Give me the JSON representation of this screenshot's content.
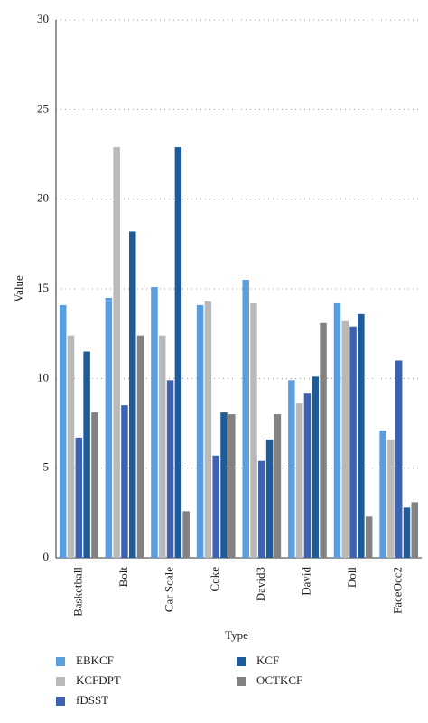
{
  "chart_data": {
    "type": "bar",
    "x_label": "Type",
    "y_label": "Value",
    "categories": [
      "Basketball",
      "Bolt",
      "Car Scale",
      "Coke",
      "David3",
      "David",
      "Doll",
      "FaceOcc2"
    ],
    "series": [
      {
        "name": "EBKCF",
        "color": "#5a9ee0",
        "values": [
          14.1,
          14.5,
          15.1,
          14.1,
          15.5,
          9.9,
          14.2,
          7.1
        ]
      },
      {
        "name": "KCFDPT",
        "color": "#b9b9b9",
        "values": [
          12.4,
          22.9,
          12.4,
          14.3,
          14.2,
          8.6,
          13.2,
          6.6
        ]
      },
      {
        "name": "fDSST",
        "color": "#3d62b3",
        "values": [
          6.7,
          8.5,
          9.9,
          5.7,
          5.4,
          9.2,
          12.9,
          11.0
        ]
      },
      {
        "name": "KCF",
        "color": "#1e5b98",
        "values": [
          11.5,
          18.2,
          22.9,
          8.1,
          6.6,
          10.1,
          13.6,
          2.8
        ]
      },
      {
        "name": "OCTKCF",
        "color": "#828282",
        "values": [
          8.1,
          12.4,
          2.6,
          8.0,
          8.0,
          13.1,
          2.3,
          3.1
        ]
      }
    ],
    "ylim": [
      0,
      30
    ],
    "yticks": [
      0,
      5,
      10,
      15,
      20,
      25,
      30
    ],
    "grid": true
  }
}
